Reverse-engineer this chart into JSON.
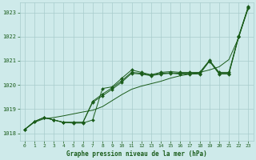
{
  "title": "Graphe pression niveau de la mer (hPa)",
  "bg_color": "#ceeaea",
  "grid_color": "#a8cccc",
  "line_color": "#1a5c1a",
  "xlim": [
    -0.5,
    23.5
  ],
  "ylim": [
    1017.7,
    1023.4
  ],
  "yticks": [
    1018,
    1019,
    1020,
    1021,
    1022,
    1023
  ],
  "xticks": [
    0,
    1,
    2,
    3,
    4,
    5,
    6,
    7,
    8,
    9,
    10,
    11,
    12,
    13,
    14,
    15,
    16,
    17,
    18,
    19,
    20,
    21,
    22,
    23
  ],
  "line_smooth": [
    1018.15,
    1018.45,
    1018.6,
    1018.65,
    1018.72,
    1018.8,
    1018.88,
    1018.95,
    1019.1,
    1019.35,
    1019.6,
    1019.82,
    1019.95,
    1020.05,
    1020.15,
    1020.28,
    1020.38,
    1020.45,
    1020.52,
    1020.62,
    1020.75,
    1021.05,
    1021.95,
    1023.25
  ],
  "line2": [
    1018.15,
    1018.48,
    1018.65,
    1018.55,
    1018.45,
    1018.42,
    1018.42,
    1018.55,
    1019.85,
    1019.92,
    1020.28,
    1020.62,
    1020.52,
    1020.42,
    1020.52,
    1020.55,
    1020.52,
    1020.52,
    1020.52,
    1021.02,
    1020.52,
    1020.52,
    1022.02,
    1023.25
  ],
  "line3": [
    1018.15,
    1018.48,
    1018.65,
    1018.55,
    1018.45,
    1018.45,
    1018.45,
    1019.32,
    1019.62,
    1019.88,
    1020.18,
    1020.52,
    1020.48,
    1020.4,
    1020.48,
    1020.5,
    1020.48,
    1020.48,
    1020.48,
    1021.0,
    1020.48,
    1020.48,
    1022.0,
    1023.22
  ],
  "line4": [
    1018.15,
    1018.48,
    1018.65,
    1018.55,
    1018.45,
    1018.45,
    1018.45,
    1019.28,
    1019.55,
    1019.82,
    1020.12,
    1020.48,
    1020.45,
    1020.38,
    1020.45,
    1020.48,
    1020.45,
    1020.45,
    1020.45,
    1020.98,
    1020.45,
    1020.45,
    1021.98,
    1023.18
  ]
}
